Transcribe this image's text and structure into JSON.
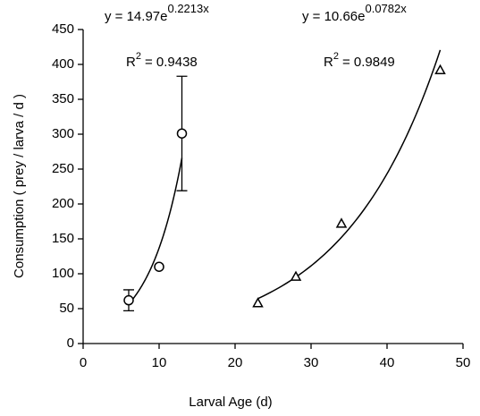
{
  "chart_data": {
    "type": "scatter",
    "xlabel": "Larval Age (d)",
    "ylabel": "Consumption ( prey  / larva / d )",
    "xlim": [
      0,
      50
    ],
    "xticks": [
      0,
      10,
      20,
      30,
      40,
      50
    ],
    "ylim": [
      0,
      450
    ],
    "yticks": [
      0,
      50,
      100,
      150,
      200,
      250,
      300,
      350,
      400,
      450
    ],
    "color": "#000000",
    "series": [
      {
        "marker": "circle",
        "x": [
          6,
          10,
          13
        ],
        "values": [
          62,
          110,
          301
        ],
        "errors": [
          15,
          null,
          82
        ]
      },
      {
        "marker": "triangle",
        "x": [
          23,
          28,
          34,
          47
        ],
        "values": [
          58,
          96,
          172,
          392
        ]
      }
    ],
    "fits": [
      {
        "a": 14.97,
        "b": 0.2213,
        "eq_base": "y = 14.97e",
        "eq_exp": "0.2213x",
        "r2_base": "R",
        "r2_exp": "2",
        "r2_value": "= 0.9438"
      },
      {
        "a": 10.66,
        "b": 0.0782,
        "eq_base": "y = 10.66e",
        "eq_exp": "0.0782x",
        "r2_base": "R",
        "r2_exp": "2",
        "r2_value": "= 0.9849"
      }
    ]
  }
}
